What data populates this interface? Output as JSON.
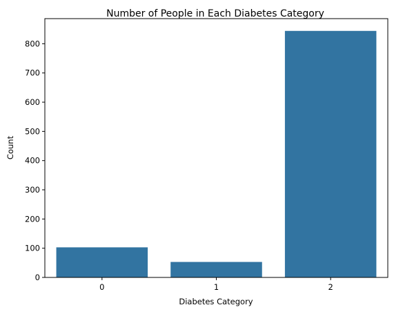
{
  "chart_data": {
    "type": "bar",
    "title": "Number of People in Each Diabetes Category",
    "xlabel": "Diabetes Category",
    "ylabel": "Count",
    "categories": [
      "0",
      "1",
      "2"
    ],
    "values": [
      103,
      53,
      844
    ],
    "ylim": [
      0,
      886
    ],
    "yticks": [
      0,
      100,
      200,
      300,
      400,
      500,
      600,
      700,
      800
    ],
    "grid": false,
    "bar_color": "#3274a1"
  }
}
